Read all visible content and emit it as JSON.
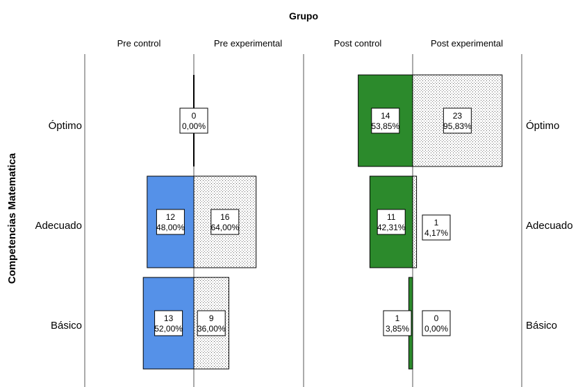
{
  "chart_data": {
    "type": "bar",
    "title": "Grupo",
    "ylabel": "Competencias Matematica",
    "categories": [
      "Óptimo",
      "Adecuado",
      "Básico"
    ],
    "panels": [
      {
        "left_label": "Pre control",
        "right_label": "Pre experimental",
        "left_color": "#5591e8",
        "left_counts": [
          0,
          12,
          13
        ],
        "left_pcts": [
          "0,00%",
          "48,00%",
          "52,00%"
        ],
        "right_counts": [
          null,
          16,
          9
        ],
        "right_pcts": [
          null,
          "64,00%",
          "36,00%"
        ]
      },
      {
        "left_label": "Post control",
        "right_label": "Post experimental",
        "left_color": "#2c8a2c",
        "left_counts": [
          14,
          11,
          1
        ],
        "left_pcts": [
          "53,85%",
          "42,31%",
          "3,85%"
        ],
        "right_counts": [
          23,
          1,
          0
        ],
        "right_pcts": [
          "95,83%",
          "4,17%",
          "0,00%"
        ]
      }
    ]
  }
}
